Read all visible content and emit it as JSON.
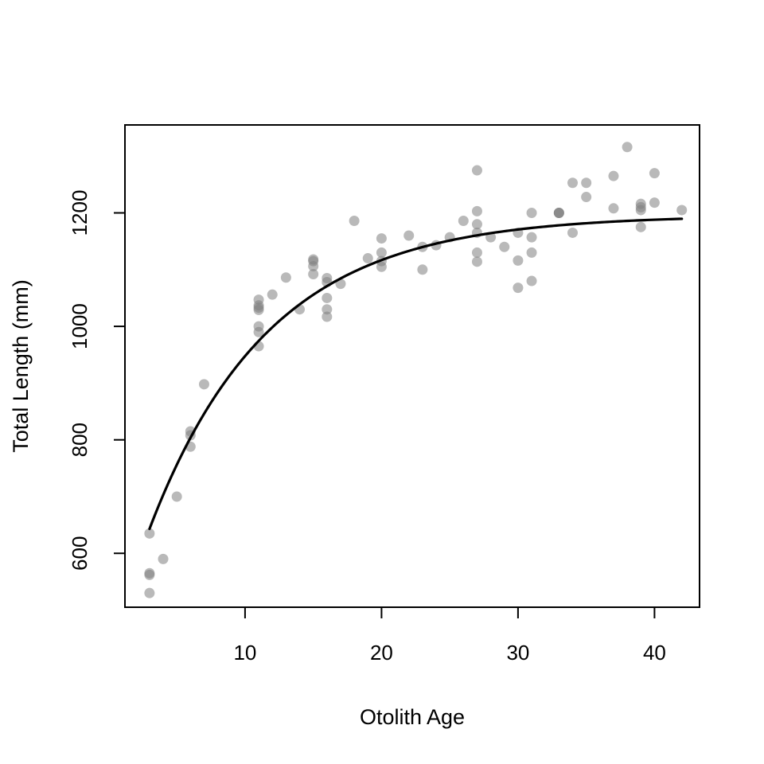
{
  "chart_data": {
    "type": "scatter",
    "title": "",
    "xlabel": "Otolith Age",
    "ylabel": "Total Length (mm)",
    "xlim": [
      1.2,
      43.3
    ],
    "ylim": [
      505,
      1355
    ],
    "x_ticks": [
      10,
      20,
      30,
      40
    ],
    "y_ticks": [
      600,
      800,
      1000,
      1200
    ],
    "grid": false,
    "legend": "none",
    "point_color": "#808080",
    "point_opacity": 0.55,
    "line_color": "#000000",
    "series": [
      {
        "type": "scatter",
        "points": [
          [
            3,
            635
          ],
          [
            3,
            565
          ],
          [
            3,
            562
          ],
          [
            3,
            530
          ],
          [
            4,
            590
          ],
          [
            5,
            700
          ],
          [
            6,
            815
          ],
          [
            6,
            808
          ],
          [
            6,
            788
          ],
          [
            7,
            898
          ],
          [
            11,
            1047
          ],
          [
            11,
            1037
          ],
          [
            11,
            1033
          ],
          [
            11,
            1029
          ],
          [
            11,
            1000
          ],
          [
            11,
            990
          ],
          [
            11,
            965
          ],
          [
            12,
            1056
          ],
          [
            13,
            1086
          ],
          [
            14,
            1030
          ],
          [
            15,
            1118
          ],
          [
            15,
            1115
          ],
          [
            15,
            1106
          ],
          [
            15,
            1092
          ],
          [
            16,
            1085
          ],
          [
            16,
            1078
          ],
          [
            16,
            1050
          ],
          [
            16,
            1030
          ],
          [
            16,
            1017
          ],
          [
            17,
            1075
          ],
          [
            18,
            1186
          ],
          [
            19,
            1120
          ],
          [
            20,
            1155
          ],
          [
            20,
            1130
          ],
          [
            20,
            1115
          ],
          [
            20,
            1105
          ],
          [
            22,
            1160
          ],
          [
            23,
            1140
          ],
          [
            23,
            1100
          ],
          [
            24,
            1143
          ],
          [
            25,
            1157
          ],
          [
            26,
            1186
          ],
          [
            27,
            1275
          ],
          [
            27,
            1203
          ],
          [
            27,
            1180
          ],
          [
            27,
            1165
          ],
          [
            27,
            1130
          ],
          [
            27,
            1114
          ],
          [
            28,
            1157
          ],
          [
            29,
            1140
          ],
          [
            30,
            1165
          ],
          [
            30,
            1116
          ],
          [
            30,
            1068
          ],
          [
            31,
            1200
          ],
          [
            31,
            1157
          ],
          [
            31,
            1130
          ],
          [
            31,
            1080
          ],
          [
            33,
            1200
          ],
          [
            33,
            1200
          ],
          [
            33,
            1200
          ],
          [
            34,
            1253
          ],
          [
            34,
            1165
          ],
          [
            35,
            1253
          ],
          [
            35,
            1228
          ],
          [
            37,
            1265
          ],
          [
            37,
            1208
          ],
          [
            38,
            1316
          ],
          [
            39,
            1216
          ],
          [
            39,
            1210
          ],
          [
            39,
            1205
          ],
          [
            39,
            1175
          ],
          [
            40,
            1270
          ],
          [
            40,
            1218
          ],
          [
            42,
            1205
          ]
        ]
      },
      {
        "type": "line",
        "model": "von Bertalanffy",
        "Linf": 1196,
        "K": 0.1143,
        "t0": -3.75,
        "x_range": [
          3,
          42
        ]
      }
    ]
  }
}
